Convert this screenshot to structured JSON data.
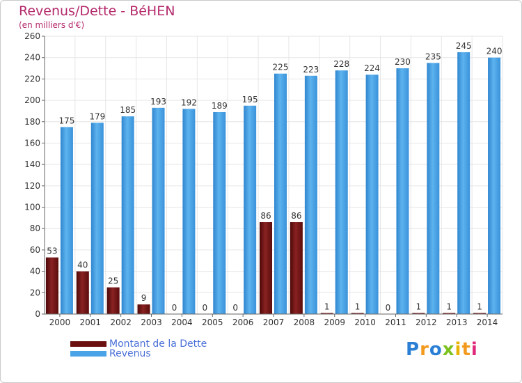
{
  "header": {
    "title": "Revenus/Dette - BéHEN",
    "subtitle": "(en milliers d'€)"
  },
  "colors": {
    "title": "#b4286a",
    "debt": "#7a1a1a",
    "revenue": "#4aa3e6",
    "axis": "#666666",
    "grid": "#e6e6e6",
    "legend_text": "#4a6fd8"
  },
  "legend": {
    "items": [
      {
        "label": "Montant de la Dette",
        "color": "#6b0f0f"
      },
      {
        "label": "Revenus",
        "color": "#4aa3e6"
      }
    ]
  },
  "logo": {
    "text": "Proxiti",
    "letter_colors": [
      "#2a7fd4",
      "#f29a1e",
      "#2a7fd4",
      "#7cc21f",
      "#e8b400",
      "#f29a1e",
      "#e0287a"
    ]
  },
  "chart_data": {
    "type": "bar",
    "title": "Revenus/Dette - BéHEN",
    "subtitle": "(en milliers d'€)",
    "categories": [
      "2000",
      "2001",
      "2002",
      "2003",
      "2004",
      "2005",
      "2006",
      "2007",
      "2008",
      "2009",
      "2010",
      "2011",
      "2012",
      "2013",
      "2014"
    ],
    "series": [
      {
        "name": "Montant de la Dette",
        "values": [
          53,
          40,
          25,
          9,
          0,
          0,
          0,
          86,
          86,
          1,
          1,
          0,
          1,
          1,
          1
        ]
      },
      {
        "name": "Revenus",
        "values": [
          175,
          179,
          185,
          193,
          192,
          189,
          195,
          225,
          223,
          228,
          224,
          230,
          235,
          245,
          240
        ]
      }
    ],
    "ylim": [
      0,
      260
    ],
    "yticks": [
      0,
      20,
      40,
      60,
      80,
      100,
      120,
      140,
      160,
      180,
      200,
      220,
      240,
      260
    ],
    "grid": true,
    "legend_position": "bottom-left"
  }
}
